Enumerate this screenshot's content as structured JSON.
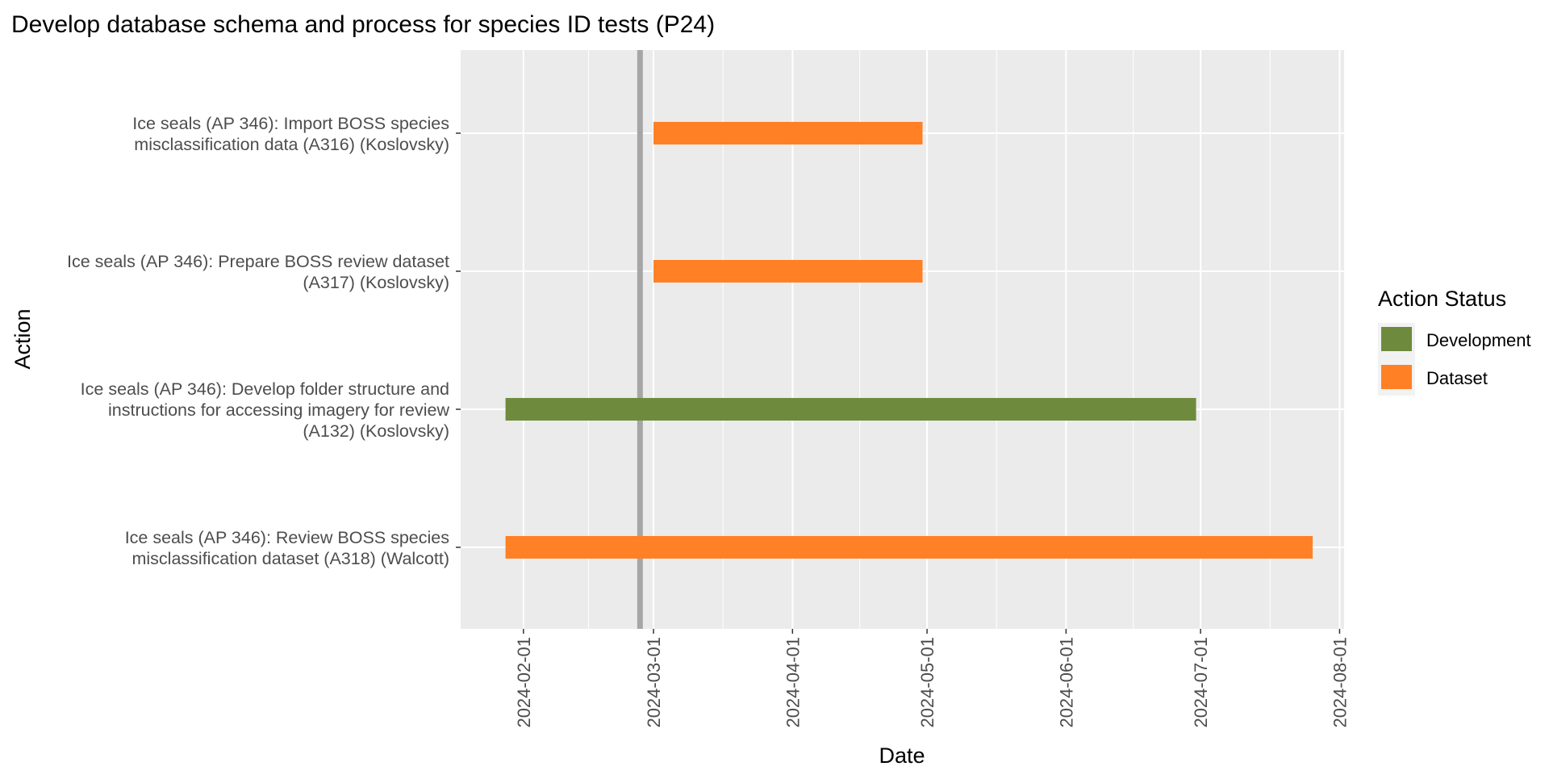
{
  "chart_data": {
    "type": "gantt",
    "title": "Develop database schema and process for species ID tests (P24)",
    "xlabel": "Date",
    "ylabel": "Action",
    "x_type": "date",
    "xlim": [
      "2024-01-18",
      "2024-08-02"
    ],
    "x_ticks": [
      "2024-02-01",
      "2024-03-01",
      "2024-04-01",
      "2024-05-01",
      "2024-06-01",
      "2024-07-01",
      "2024-08-01"
    ],
    "reference_line": {
      "date": "2024-02-27",
      "color": "#A6A6A6"
    },
    "grid": true,
    "legend": {
      "title": "Action Status",
      "position": "right",
      "items": [
        {
          "name": "Development",
          "color": "#6E8B3D"
        },
        {
          "name": "Dataset",
          "color": "#FF8025"
        }
      ]
    },
    "tasks": [
      {
        "label_lines": [
          "Ice seals (AP 346): Import BOSS species",
          "misclassification data (A316) (Koslovsky)"
        ],
        "status": "Dataset",
        "start": "2024-03-01",
        "end": "2024-04-30"
      },
      {
        "label_lines": [
          "Ice seals (AP 346): Prepare BOSS review dataset",
          "(A317) (Koslovsky)"
        ],
        "status": "Dataset",
        "start": "2024-03-01",
        "end": "2024-04-30"
      },
      {
        "label_lines": [
          "Ice seals (AP 346): Develop folder structure and",
          "instructions for accessing imagery for review",
          "(A132) (Koslovsky)"
        ],
        "status": "Development",
        "start": "2024-01-28",
        "end": "2024-06-30"
      },
      {
        "label_lines": [
          "Ice seals (AP 346): Review BOSS species",
          "misclassification dataset (A318) (Walcott)"
        ],
        "status": "Dataset",
        "start": "2024-01-28",
        "end": "2024-07-26"
      }
    ]
  }
}
